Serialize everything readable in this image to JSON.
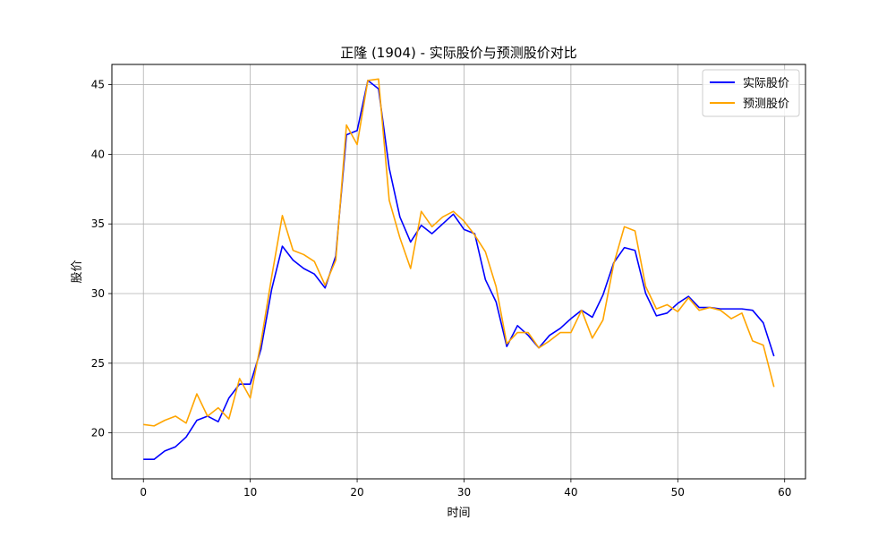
{
  "chart_data": {
    "type": "line",
    "title": "正隆 (1904) - 实际股价与预测股价对比",
    "xlabel": "时间",
    "ylabel": "股价",
    "xlim": [
      -2.95,
      61.95
    ],
    "ylim": [
      16.7,
      46.45
    ],
    "xticks": [
      0,
      10,
      20,
      30,
      40,
      50,
      60
    ],
    "yticks": [
      20,
      25,
      30,
      35,
      40,
      45
    ],
    "grid": true,
    "legend_position": "top-right",
    "series": [
      {
        "name": "实际股价",
        "color": "#0000ff",
        "values": [
          18.1,
          18.1,
          18.7,
          19.0,
          19.7,
          20.9,
          21.2,
          20.8,
          22.5,
          23.5,
          23.5,
          26.0,
          30.3,
          33.4,
          32.4,
          31.8,
          31.4,
          30.4,
          32.7,
          41.4,
          41.7,
          45.3,
          44.7,
          39.0,
          35.5,
          33.7,
          34.9,
          34.3,
          35.0,
          35.7,
          34.6,
          34.3,
          31.0,
          29.4,
          26.2,
          27.7,
          27.0,
          26.1,
          27.0,
          27.5,
          28.2,
          28.8,
          28.3,
          29.9,
          32.2,
          33.3,
          33.1,
          30.0,
          28.4,
          28.6,
          29.3,
          29.8,
          29.0,
          29.0,
          28.9,
          28.9,
          28.9,
          28.8,
          27.9,
          25.5
        ]
      },
      {
        "name": "预测股价",
        "color": "#ffa500",
        "values": [
          20.6,
          20.5,
          20.9,
          21.2,
          20.7,
          22.8,
          21.2,
          21.8,
          21.0,
          23.9,
          22.5,
          26.5,
          31.2,
          35.6,
          33.1,
          32.8,
          32.3,
          30.6,
          32.4,
          42.1,
          40.7,
          45.3,
          45.4,
          36.7,
          34.0,
          31.8,
          35.9,
          34.8,
          35.5,
          35.9,
          35.2,
          34.2,
          33.0,
          30.5,
          26.4,
          27.2,
          27.2,
          26.1,
          26.6,
          27.2,
          27.2,
          28.8,
          26.8,
          28.1,
          32.1,
          34.8,
          34.5,
          30.5,
          28.9,
          29.2,
          28.7,
          29.7,
          28.8,
          29.0,
          28.8,
          28.2,
          28.6,
          26.6,
          26.3,
          23.3
        ]
      }
    ]
  }
}
